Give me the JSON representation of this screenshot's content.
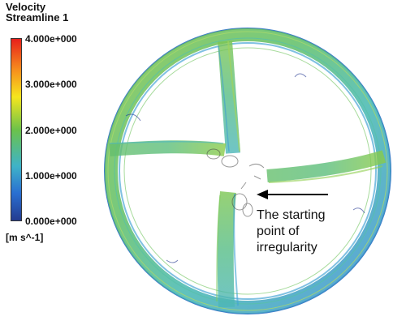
{
  "legend": {
    "title": "Velocity",
    "subtitle": "Streamline 1",
    "ticks": [
      "4.000e+000",
      "3.000e+000",
      "2.000e+000",
      "1.000e+000",
      "0.000e+000"
    ],
    "units": "[m s^-1]",
    "colors": {
      "top": "#e8201c",
      "upper": "#f7941d",
      "upper_mid": "#f5e61e",
      "mid": "#6cc24a",
      "lower_mid": "#3fb3c8",
      "lower": "#2a6fd1",
      "bottom": "#233c8f"
    }
  },
  "annotation": {
    "lines": [
      "The starting",
      "point of",
      "irregularity"
    ]
  }
}
